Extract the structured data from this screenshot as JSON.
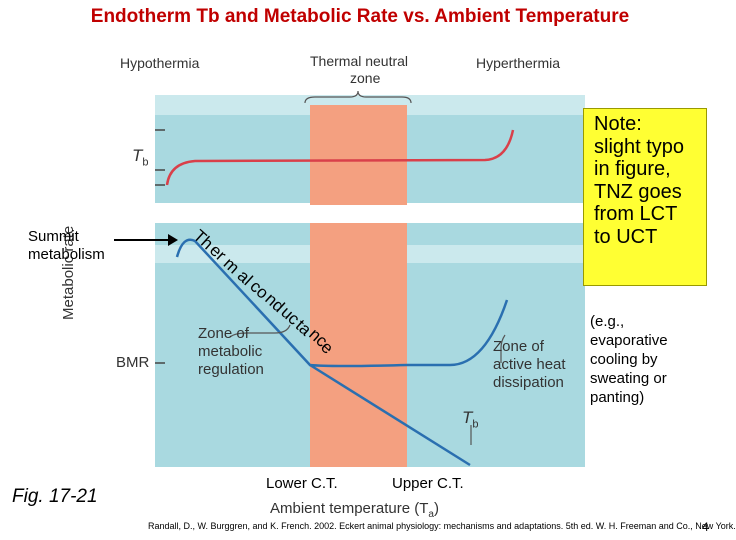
{
  "title": "Endotherm Tb and Metabolic Rate vs. Ambient Temperature",
  "top_panel": {
    "hypothermia": "Hypothermia",
    "thermal_neutral_zone_line1": "Thermal neutral",
    "thermal_neutral_zone_line2": "zone",
    "hyperthermia": "Hyperthermia",
    "tb_axis": "T",
    "tb_sub": "b"
  },
  "bottom_panel": {
    "y_axis_label": "Metabolic rate",
    "bmr": "BMR",
    "zone_metabolic": [
      "Zone of",
      "metabolic",
      "regulation"
    ],
    "zone_heat": [
      "Zone of",
      "active heat",
      "dissipation"
    ],
    "tb_curve": "T",
    "tb_curve_sub": "b",
    "thermal_conductance_letters": [
      "Th",
      "er",
      "m",
      "al",
      "co",
      "nd",
      "uc",
      "ta",
      "nc",
      "e"
    ]
  },
  "summit": [
    "Summit",
    "metabolism"
  ],
  "note": [
    "Note:",
    "slight typo",
    "in figure,",
    "TNZ goes",
    "from LCT",
    "to UCT"
  ],
  "example": [
    "(e.g.,",
    "evaporative",
    "cooling by",
    "sweating or",
    "panting)"
  ],
  "lower_ct": "Lower C.T.",
  "upper_ct": "Upper C.T.",
  "x_axis_label": "Ambient temperature (T",
  "x_axis_sub": "a",
  "x_axis_close": ")",
  "figure_label": "Fig. 17-21",
  "citation": "Randall, D., W. Burggren, and K. French. 2002. Eckert animal physiology: mechanisms and adaptations. 5th ed. W. H. Freeman and Co., New York.",
  "page_number": "4",
  "colors": {
    "title": "#c00000",
    "panel": "#a8d8df",
    "tnz": "#f4a080",
    "curve_red": "#d9404a",
    "curve_blue": "#2a6fb0",
    "note_bg": "#ffff33"
  }
}
